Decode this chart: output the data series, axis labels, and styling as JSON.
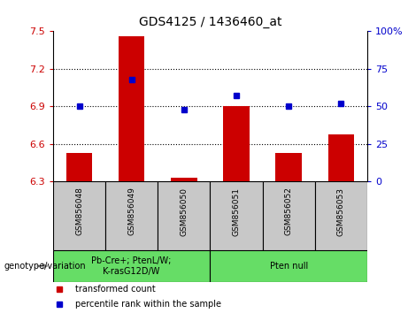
{
  "title": "GDS4125 / 1436460_at",
  "samples": [
    "GSM856048",
    "GSM856049",
    "GSM856050",
    "GSM856051",
    "GSM856052",
    "GSM856053"
  ],
  "red_values": [
    6.53,
    7.46,
    6.33,
    6.9,
    6.53,
    6.68
  ],
  "blue_values": [
    50,
    68,
    48,
    57,
    50,
    52
  ],
  "ylim_left": [
    6.3,
    7.5
  ],
  "ylim_right": [
    0,
    100
  ],
  "yticks_left": [
    6.3,
    6.6,
    6.9,
    7.2,
    7.5
  ],
  "yticks_right": [
    0,
    25,
    50,
    75,
    100
  ],
  "hlines": [
    6.6,
    6.9,
    7.2
  ],
  "group1_label": "Pb-Cre+; PtenL/W;\nK-rasG12D/W",
  "group2_label": "Pten null",
  "group1_samples": [
    0,
    1,
    2
  ],
  "group2_samples": [
    3,
    4,
    5
  ],
  "group1_color": "#66DD66",
  "group2_color": "#66DD66",
  "bar_color": "#CC0000",
  "dot_color": "#0000CC",
  "genotype_label": "genotype/variation",
  "legend_red": "transformed count",
  "legend_blue": "percentile rank within the sample",
  "tick_color_left": "#CC0000",
  "tick_color_right": "#0000CC",
  "bar_width": 0.5,
  "sample_bg_color": "#C8C8C8"
}
